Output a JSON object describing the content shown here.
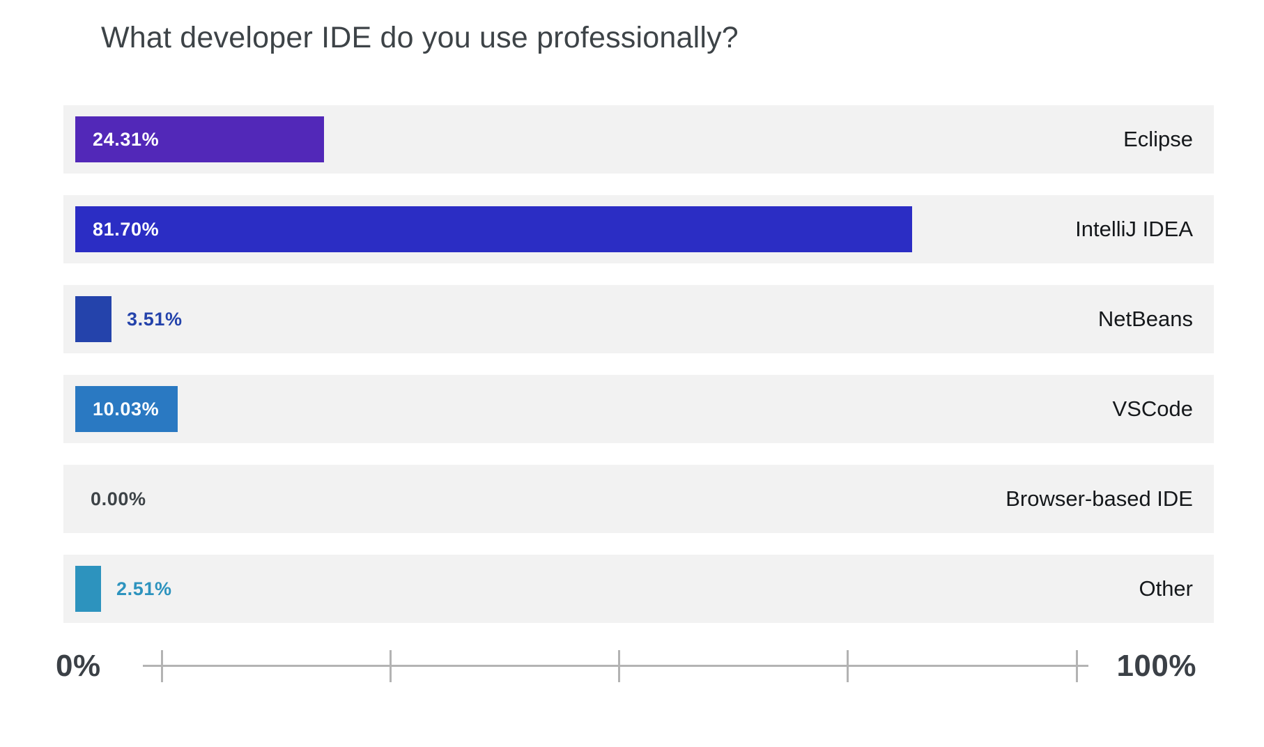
{
  "chart_data": {
    "type": "bar",
    "orientation": "horizontal",
    "title": "What developer IDE do you use professionally?",
    "xlabel": "",
    "ylabel": "",
    "xlim": [
      0,
      100
    ],
    "grid": false,
    "legend": "none",
    "categories": [
      "Eclipse",
      "IntelliJ IDEA",
      "NetBeans",
      "VSCode",
      "Browser-based IDE",
      "Other"
    ],
    "values": [
      24.31,
      81.7,
      3.51,
      10.03,
      0.0,
      2.51
    ],
    "bars": [
      {
        "category": "Eclipse",
        "value": 24.31,
        "value_label": "24.31%",
        "color": "#5228b8",
        "label_inside": true,
        "label_color": "#ffffff"
      },
      {
        "category": "IntelliJ IDEA",
        "value": 81.7,
        "value_label": "81.70%",
        "color": "#2b2dc4",
        "label_inside": true,
        "label_color": "#ffffff"
      },
      {
        "category": "NetBeans",
        "value": 3.51,
        "value_label": "3.51%",
        "color": "#2443ab",
        "label_inside": false,
        "label_color": "#2443ab"
      },
      {
        "category": "VSCode",
        "value": 10.03,
        "value_label": "10.03%",
        "color": "#2a79c2",
        "label_inside": true,
        "label_color": "#ffffff"
      },
      {
        "category": "Browser-based IDE",
        "value": 0.0,
        "value_label": "0.00%",
        "color": "#f2f2f2",
        "label_inside": false,
        "label_color": "#3d4347"
      },
      {
        "category": "Other",
        "value": 2.51,
        "value_label": "2.51%",
        "color": "#2d93be",
        "label_inside": false,
        "label_color": "#2d93be"
      }
    ],
    "axis": {
      "min_label": "0%",
      "max_label": "100%",
      "tick_count": 5
    }
  },
  "colors": {
    "page_bg": "#ffffff",
    "row_bg": "#f2f2f2",
    "axis_line": "#b3b3b3",
    "title_text": "#3d4347",
    "category_text": "#15181b",
    "axis_label_text": "#3b4046"
  }
}
